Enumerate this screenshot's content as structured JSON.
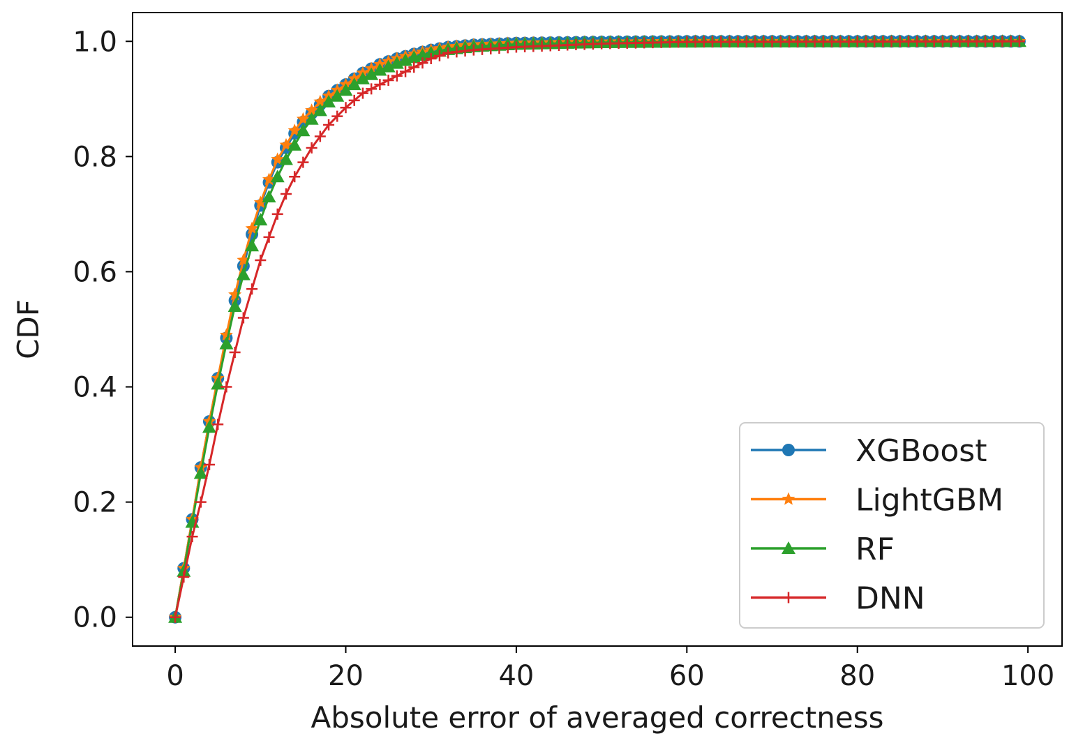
{
  "chart_data": {
    "type": "line",
    "title": "",
    "xlabel": "Absolute error of averaged correctness",
    "ylabel": "CDF",
    "xlim": [
      -5,
      104
    ],
    "ylim": [
      -0.05,
      1.05
    ],
    "xticks": [
      0,
      20,
      40,
      60,
      80,
      100
    ],
    "yticks": [
      0.0,
      0.2,
      0.4,
      0.6,
      0.8,
      1.0
    ],
    "xtick_labels": [
      "0",
      "20",
      "40",
      "60",
      "80",
      "100"
    ],
    "ytick_labels": [
      "0.0",
      "0.2",
      "0.4",
      "0.6",
      "0.8",
      "1.0"
    ],
    "grid": false,
    "legend_position": "lower-right",
    "x_range_of_points": [
      0,
      99
    ],
    "series": [
      {
        "name": "XGBoost",
        "color": "#1f77b4",
        "marker": "circle",
        "points": [
          [
            0,
            0.0
          ],
          [
            1,
            0.085
          ],
          [
            2,
            0.17
          ],
          [
            3,
            0.26
          ],
          [
            4,
            0.34
          ],
          [
            5,
            0.415
          ],
          [
            6,
            0.485
          ],
          [
            7,
            0.55
          ],
          [
            8,
            0.61
          ],
          [
            9,
            0.665
          ],
          [
            10,
            0.715
          ],
          [
            11,
            0.755
          ],
          [
            12,
            0.79
          ],
          [
            13,
            0.815
          ],
          [
            14,
            0.84
          ],
          [
            15,
            0.86
          ],
          [
            16,
            0.875
          ],
          [
            17,
            0.89
          ],
          [
            18,
            0.905
          ],
          [
            19,
            0.915
          ],
          [
            20,
            0.925
          ],
          [
            22,
            0.945
          ],
          [
            24,
            0.96
          ],
          [
            26,
            0.97
          ],
          [
            28,
            0.978
          ],
          [
            30,
            0.985
          ],
          [
            32,
            0.99
          ],
          [
            35,
            0.994
          ],
          [
            40,
            0.997
          ],
          [
            50,
            0.999
          ],
          [
            60,
            1.0
          ],
          [
            99,
            1.0
          ]
        ]
      },
      {
        "name": "LightGBM",
        "color": "#ff7f0e",
        "marker": "star",
        "points": [
          [
            0,
            0.0
          ],
          [
            1,
            0.085
          ],
          [
            2,
            0.17
          ],
          [
            3,
            0.26
          ],
          [
            4,
            0.34
          ],
          [
            5,
            0.415
          ],
          [
            6,
            0.49
          ],
          [
            7,
            0.56
          ],
          [
            8,
            0.62
          ],
          [
            9,
            0.675
          ],
          [
            10,
            0.72
          ],
          [
            11,
            0.76
          ],
          [
            12,
            0.795
          ],
          [
            13,
            0.82
          ],
          [
            14,
            0.845
          ],
          [
            15,
            0.865
          ],
          [
            16,
            0.88
          ],
          [
            17,
            0.895
          ],
          [
            18,
            0.905
          ],
          [
            19,
            0.915
          ],
          [
            20,
            0.925
          ],
          [
            22,
            0.945
          ],
          [
            24,
            0.96
          ],
          [
            26,
            0.97
          ],
          [
            28,
            0.978
          ],
          [
            30,
            0.985
          ],
          [
            32,
            0.99
          ],
          [
            35,
            0.994
          ],
          [
            40,
            0.997
          ],
          [
            50,
            0.999
          ],
          [
            60,
            1.0
          ],
          [
            99,
            1.0
          ]
        ]
      },
      {
        "name": "RF",
        "color": "#2ca02c",
        "marker": "triangle",
        "points": [
          [
            0,
            0.0
          ],
          [
            1,
            0.08
          ],
          [
            2,
            0.165
          ],
          [
            3,
            0.25
          ],
          [
            4,
            0.33
          ],
          [
            5,
            0.405
          ],
          [
            6,
            0.475
          ],
          [
            7,
            0.54
          ],
          [
            8,
            0.595
          ],
          [
            9,
            0.645
          ],
          [
            10,
            0.69
          ],
          [
            11,
            0.73
          ],
          [
            12,
            0.765
          ],
          [
            13,
            0.795
          ],
          [
            14,
            0.82
          ],
          [
            15,
            0.845
          ],
          [
            16,
            0.865
          ],
          [
            17,
            0.88
          ],
          [
            18,
            0.895
          ],
          [
            19,
            0.905
          ],
          [
            20,
            0.915
          ],
          [
            22,
            0.935
          ],
          [
            24,
            0.95
          ],
          [
            26,
            0.962
          ],
          [
            28,
            0.972
          ],
          [
            30,
            0.98
          ],
          [
            32,
            0.986
          ],
          [
            35,
            0.991
          ],
          [
            40,
            0.995
          ],
          [
            50,
            0.998
          ],
          [
            60,
            0.999
          ],
          [
            99,
            1.0
          ]
        ]
      },
      {
        "name": "DNN",
        "color": "#d62728",
        "marker": "plus",
        "points": [
          [
            0,
            0.0
          ],
          [
            1,
            0.07
          ],
          [
            2,
            0.14
          ],
          [
            3,
            0.2
          ],
          [
            4,
            0.265
          ],
          [
            5,
            0.335
          ],
          [
            6,
            0.4
          ],
          [
            7,
            0.46
          ],
          [
            8,
            0.52
          ],
          [
            9,
            0.57
          ],
          [
            10,
            0.62
          ],
          [
            11,
            0.66
          ],
          [
            12,
            0.7
          ],
          [
            13,
            0.735
          ],
          [
            14,
            0.765
          ],
          [
            15,
            0.79
          ],
          [
            16,
            0.815
          ],
          [
            17,
            0.835
          ],
          [
            18,
            0.855
          ],
          [
            19,
            0.87
          ],
          [
            20,
            0.885
          ],
          [
            22,
            0.91
          ],
          [
            24,
            0.925
          ],
          [
            26,
            0.94
          ],
          [
            28,
            0.955
          ],
          [
            30,
            0.97
          ],
          [
            32,
            0.98
          ],
          [
            35,
            0.985
          ],
          [
            40,
            0.99
          ],
          [
            50,
            0.996
          ],
          [
            60,
            0.999
          ],
          [
            99,
            1.0
          ]
        ]
      }
    ]
  }
}
